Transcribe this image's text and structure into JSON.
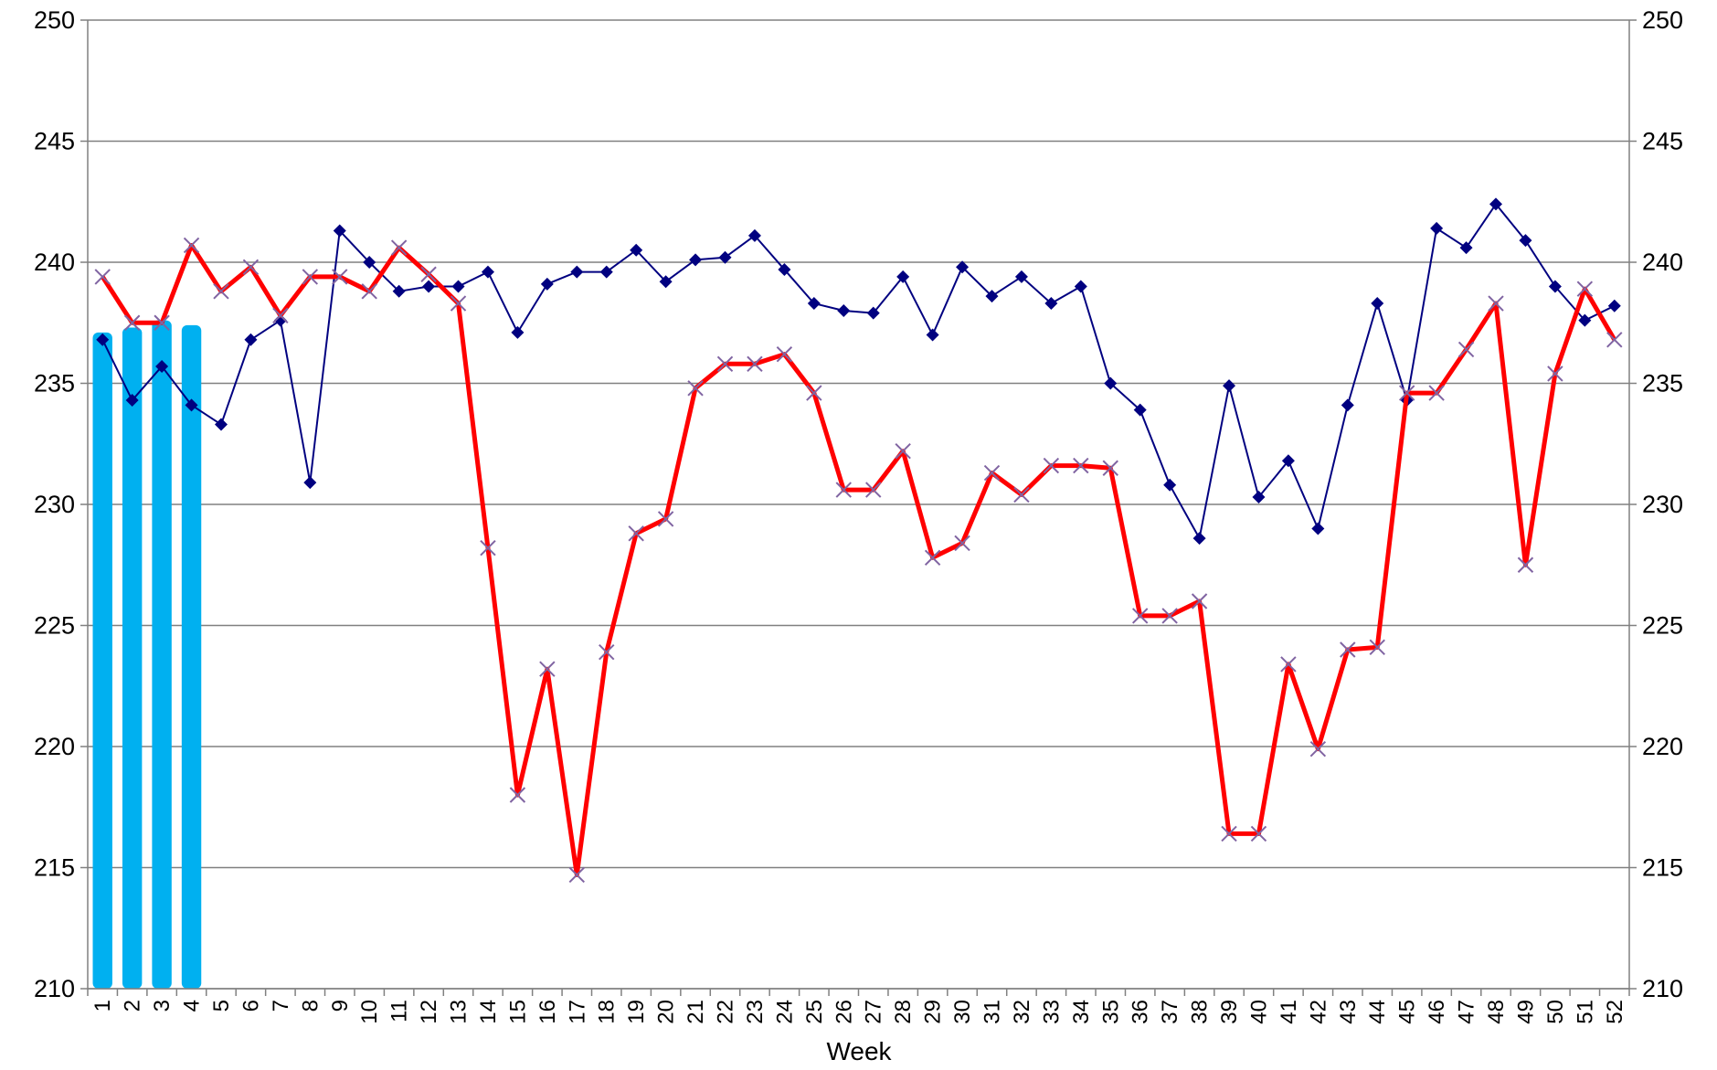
{
  "chart_data": {
    "type": "combo",
    "x_label": "Week",
    "categories": [
      1,
      2,
      3,
      4,
      5,
      6,
      7,
      8,
      9,
      10,
      11,
      12,
      13,
      14,
      15,
      16,
      17,
      18,
      19,
      20,
      21,
      22,
      23,
      24,
      25,
      26,
      27,
      28,
      29,
      30,
      31,
      32,
      33,
      34,
      35,
      36,
      37,
      38,
      39,
      40,
      41,
      42,
      43,
      44,
      45,
      46,
      47,
      48,
      49,
      50,
      51,
      52
    ],
    "ylim": [
      210,
      250
    ],
    "yticks": [
      210,
      215,
      220,
      225,
      230,
      235,
      240,
      245,
      250
    ],
    "y2lim": [
      210,
      250
    ],
    "y2ticks": [
      210,
      215,
      220,
      225,
      230,
      235,
      240,
      245,
      250
    ],
    "grid": true,
    "series": [
      {
        "type": "bar",
        "color": "#00b0f0",
        "values": [
          237.1,
          237.3,
          237.6,
          237.4,
          null,
          null,
          null,
          null,
          null,
          null,
          null,
          null,
          null,
          null,
          null,
          null,
          null,
          null,
          null,
          null,
          null,
          null,
          null,
          null,
          null,
          null,
          null,
          null,
          null,
          null,
          null,
          null,
          null,
          null,
          null,
          null,
          null,
          null,
          null,
          null,
          null,
          null,
          null,
          null,
          null,
          null,
          null,
          null,
          null,
          null,
          null,
          null
        ]
      },
      {
        "type": "line",
        "color": "#000080",
        "marker": "diamond",
        "marker_color": "#000080",
        "values": [
          236.8,
          234.3,
          235.7,
          234.1,
          233.3,
          236.8,
          237.6,
          230.9,
          241.3,
          240.0,
          238.8,
          239.0,
          239.0,
          239.6,
          237.1,
          239.1,
          239.6,
          239.6,
          240.5,
          239.2,
          240.1,
          240.2,
          241.1,
          239.7,
          238.3,
          238.0,
          237.9,
          239.4,
          237.0,
          239.8,
          238.6,
          239.4,
          238.3,
          239.0,
          235.0,
          233.9,
          230.8,
          228.6,
          234.9,
          230.3,
          231.8,
          229.0,
          234.1,
          238.3,
          234.3,
          241.4,
          240.6,
          242.4,
          240.9,
          239.0,
          237.6,
          238.2
        ]
      },
      {
        "type": "line",
        "color": "#ff0000",
        "marker": "x",
        "marker_color": "#8064a2",
        "values": [
          239.4,
          237.5,
          237.5,
          240.7,
          238.8,
          239.8,
          237.8,
          239.4,
          239.4,
          238.8,
          240.6,
          239.5,
          238.3,
          228.2,
          218.0,
          223.2,
          214.7,
          223.9,
          228.8,
          229.4,
          234.8,
          235.8,
          235.8,
          236.2,
          234.6,
          230.6,
          230.6,
          232.2,
          227.8,
          228.4,
          231.3,
          230.4,
          231.6,
          231.6,
          231.5,
          225.4,
          225.4,
          226.0,
          216.4,
          216.4,
          223.4,
          219.9,
          224.0,
          224.1,
          234.6,
          234.6,
          236.4,
          238.3,
          227.5,
          235.4,
          238.9,
          236.8
        ]
      }
    ]
  }
}
